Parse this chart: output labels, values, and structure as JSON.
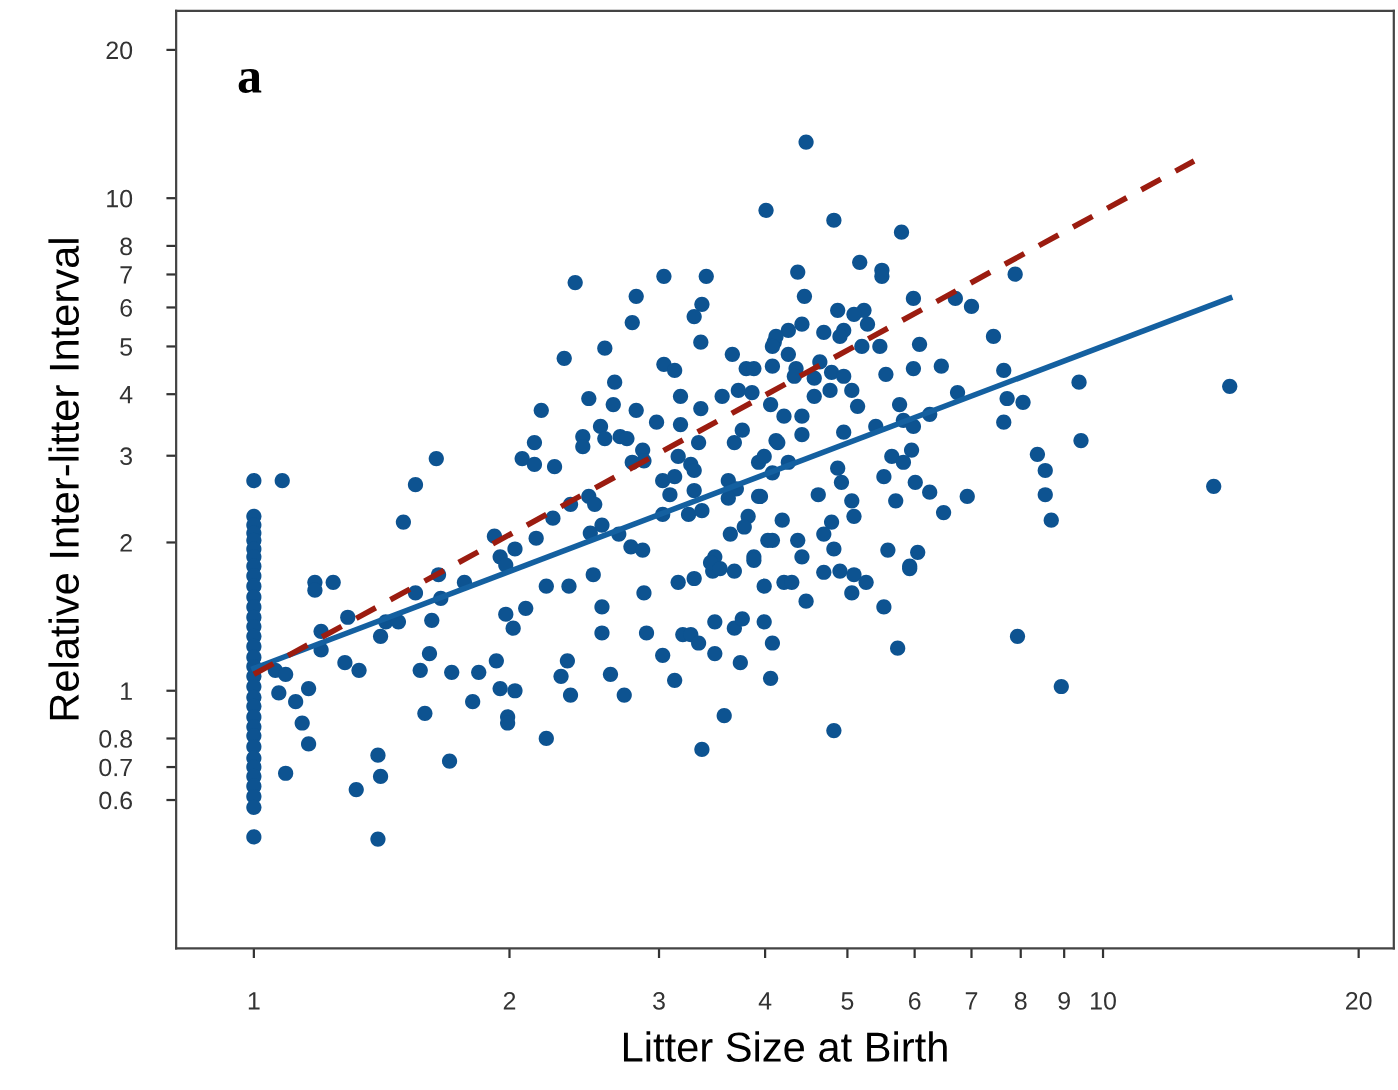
{
  "chart_data": {
    "type": "scatter",
    "xlabel": "Litter Size at Birth",
    "ylabel": "Relative Inter-litter Interval",
    "annotations": [
      "a"
    ],
    "log": "xy",
    "xlim": [
      0.81,
      22
    ],
    "ylim": [
      0.3,
      24
    ],
    "xticks": [
      1,
      2,
      3,
      4,
      5,
      6,
      7,
      8,
      9,
      10,
      20
    ],
    "yticks": [
      0.6,
      0.7,
      0.8,
      1,
      2,
      3,
      4,
      5,
      6,
      7,
      8,
      10,
      20
    ],
    "series": [
      {
        "color": "#0d5391",
        "marker": "circle",
        "x": [
          4.01,
          2.39,
          3.04,
          3.41,
          2.82,
          3.37,
          2.79,
          3.3,
          3.36,
          2.59,
          2.32,
          3.04,
          3.13,
          3.66,
          3.8,
          3.88,
          4.08,
          4.1,
          2.66,
          2.48,
          2.18,
          2.65,
          2.82,
          3.18,
          3.36,
          3.56,
          3.72,
          3.86,
          2.98,
          3.18,
          2.56,
          3.76,
          4.12,
          2.44,
          2.59,
          2.7,
          2.75,
          2.14,
          2.07,
          2.14,
          2.26,
          1.64,
          2.44,
          2.87,
          2.79,
          2.88,
          3.16,
          3.34,
          3.68,
          3.93,
          3.03,
          3.13,
          3.27,
          3.3,
          3.62,
          3.7,
          4.08,
          1,
          1.08,
          1.55,
          3.09,
          3.3,
          3.62,
          3.95,
          1.5,
          2.25,
          2.36,
          2.48,
          2.52,
          2.57,
          2.69,
          3.03,
          3.25,
          3.37,
          3.64,
          3.82,
          3.78,
          4.08,
          1.92,
          2.03,
          2.15,
          2.49,
          2.78,
          2.87,
          3.49,
          3.88,
          3.47,
          1.95,
          1,
          1,
          1,
          1,
          1,
          1,
          1,
          1,
          1,
          1,
          1,
          1,
          1,
          1,
          1,
          1,
          1,
          1,
          1,
          1,
          1,
          1,
          1,
          1,
          1,
          1,
          1,
          1,
          1,
          1,
          1,
          1,
          1.18,
          1.18,
          1.24,
          1.2,
          1.29,
          1.2,
          1.06,
          1.09,
          1.07,
          1.12,
          1.16,
          1.14,
          1.16,
          1.09,
          1.28,
          1.33,
          1.32,
          1.4,
          1.41,
          1.4,
          1.41,
          1.43,
          1.48,
          1.55,
          1.62,
          1.66,
          1.65,
          1.77,
          1.61,
          1.57,
          1.59,
          1.71,
          1.7,
          1.81,
          1.84,
          1.93,
          1.95,
          2.03,
          1.99,
          1.99,
          1.98,
          2.02,
          2.09,
          1.98,
          2.21,
          2.35,
          2.21,
          2.3,
          2.34,
          2.36,
          2.51,
          2.57,
          2.57,
          2.63,
          2.73,
          2.88,
          2.9,
          3.03,
          3.13,
          3.16,
          3.3,
          3.2,
          3.27,
          3.34,
          3.49,
          3.49,
          3.58,
          3.37,
          3.45,
          3.54,
          3.68,
          3.74,
          3.68,
          3.76,
          3.88,
          3.99,
          3.99,
          4.08,
          4.06,
          4.21,
          4.47,
          4.82,
          5.79,
          5.17,
          5.49,
          4.37,
          5.49,
          4.45,
          5.98,
          6.7,
          7.0,
          7.88,
          4.87,
          5.23,
          5.09,
          5.28,
          4.42,
          4.26,
          4.12,
          4.69,
          4.95,
          4.9,
          7.43,
          6.08,
          5.46,
          5.2,
          4.08,
          4.26,
          4.35,
          4.64,
          4.79,
          4.95,
          5.55,
          5.98,
          6.45,
          7.64,
          4.33,
          4.57,
          4.77,
          5.06,
          4.57,
          6.74,
          9.37,
          14.1,
          7.71,
          8.05,
          4.06,
          5.14,
          5.76,
          4.21,
          4.42,
          5.4,
          5.82,
          6.25,
          5.98,
          7.64,
          4.95,
          4.42,
          4.14,
          9.42,
          8.37,
          5.64,
          5.95,
          5.82,
          5.52,
          8.55,
          4.87,
          4.26,
          3.99,
          6.01,
          6.25,
          4.92,
          4.62,
          5.7,
          5.06,
          3.93,
          6.92,
          8.55,
          13.5,
          6.49,
          8.69,
          5.09,
          4.79,
          4.19,
          4.03,
          4.37,
          4.69,
          4.82,
          5.58,
          6.05,
          4.42,
          5.92,
          4.3,
          4.47,
          4.69,
          4.9,
          5.09,
          5.06,
          5.26,
          5.92,
          5.52,
          5.73,
          7.93,
          8.93,
          4.82
        ],
        "values": [
          9.45,
          6.74,
          6.94,
          6.94,
          6.32,
          6.09,
          5.59,
          5.75,
          5.1,
          4.96,
          4.73,
          4.6,
          4.47,
          4.82,
          4.51,
          4.51,
          4.56,
          5.1,
          4.23,
          3.92,
          3.71,
          3.81,
          3.71,
          3.96,
          3.74,
          3.96,
          4.07,
          4.03,
          3.51,
          3.47,
          3.44,
          3.38,
          3.22,
          3.28,
          3.25,
          3.28,
          3.25,
          3.19,
          2.96,
          2.88,
          2.85,
          2.96,
          3.13,
          3.08,
          2.91,
          2.93,
          2.99,
          3.19,
          3.19,
          2.91,
          2.67,
          2.72,
          2.88,
          2.8,
          2.67,
          2.57,
          2.77,
          2.67,
          2.67,
          2.62,
          2.5,
          2.55,
          2.46,
          2.48,
          2.2,
          2.24,
          2.39,
          2.48,
          2.39,
          2.17,
          2.08,
          2.28,
          2.28,
          2.32,
          2.08,
          2.26,
          2.15,
          2.02,
          2.06,
          1.94,
          2.04,
          2.09,
          1.96,
          1.93,
          1.87,
          1.87,
          1.75,
          1.87,
          2.26,
          2.17,
          2.09,
          2.02,
          1.94,
          1.87,
          1.79,
          1.71,
          1.63,
          1.55,
          1.48,
          1.41,
          1.35,
          1.29,
          1.23,
          1.17,
          1.12,
          1.07,
          1.02,
          0.97,
          0.93,
          0.885,
          0.845,
          0.81,
          0.77,
          0.73,
          0.7,
          0.67,
          0.64,
          0.61,
          0.58,
          0.505,
          1.66,
          1.6,
          1.66,
          1.32,
          1.41,
          1.21,
          1.1,
          1.08,
          0.99,
          0.95,
          1.01,
          0.86,
          0.78,
          0.68,
          1.14,
          1.1,
          0.63,
          0.74,
          0.67,
          0.5,
          1.29,
          1.38,
          1.38,
          1.58,
          1.39,
          1.54,
          1.72,
          1.66,
          1.19,
          1.1,
          0.9,
          1.09,
          0.72,
          0.95,
          1.09,
          1.15,
          1.01,
          1.0,
          0.885,
          0.86,
          1.43,
          1.34,
          1.47,
          1.8,
          1.63,
          1.63,
          0.8,
          1.07,
          1.15,
          0.98,
          1.72,
          1.48,
          1.31,
          1.08,
          0.98,
          1.58,
          1.31,
          1.18,
          1.05,
          1.66,
          1.69,
          1.3,
          1.3,
          1.25,
          1.38,
          1.19,
          0.89,
          0.76,
          1.82,
          1.77,
          1.75,
          1.14,
          1.34,
          1.4,
          1.84,
          1.63,
          1.38,
          1.25,
          1.06,
          1.66,
          13.0,
          9.02,
          8.53,
          7.41,
          7.14,
          7.08,
          6.94,
          6.32,
          6.26,
          6.26,
          6.03,
          7.01,
          5.92,
          5.92,
          5.81,
          5.55,
          5.55,
          5.39,
          5.24,
          5.34,
          5.39,
          5.24,
          5.24,
          5.05,
          5.0,
          5.0,
          5.0,
          4.82,
          4.51,
          4.65,
          4.43,
          4.35,
          4.39,
          4.51,
          4.56,
          4.47,
          4.35,
          4.31,
          4.07,
          4.07,
          3.96,
          4.03,
          4.23,
          4.15,
          3.92,
          3.85,
          3.81,
          3.78,
          3.81,
          3.61,
          3.61,
          3.44,
          3.54,
          3.64,
          3.44,
          3.51,
          3.35,
          3.31,
          3.19,
          3.22,
          3.02,
          2.99,
          3.08,
          2.91,
          2.72,
          2.8,
          2.83,
          2.91,
          2.99,
          2.65,
          2.53,
          2.65,
          2.5,
          2.43,
          2.43,
          2.48,
          2.48,
          2.5,
          2.6,
          2.3,
          2.22,
          2.26,
          2.2,
          2.22,
          2.02,
          2.02,
          2.08,
          1.94,
          1.93,
          1.91,
          1.87,
          1.79,
          1.66,
          1.52,
          1.74,
          1.75,
          1.72,
          1.58,
          1.66,
          1.77,
          1.48,
          1.22,
          1.29,
          1.02,
          0.83
        ]
      },
      {
        "type": "line",
        "color": "#1460a0",
        "line_style": "solid",
        "x": [
          1,
          14.1
        ],
        "values": [
          1.11,
          6.27
        ]
      },
      {
        "type": "line",
        "color": "#9b1c10",
        "line_style": "dashed",
        "x": [
          1,
          12.8
        ],
        "values": [
          1.08,
          11.9
        ]
      }
    ]
  }
}
